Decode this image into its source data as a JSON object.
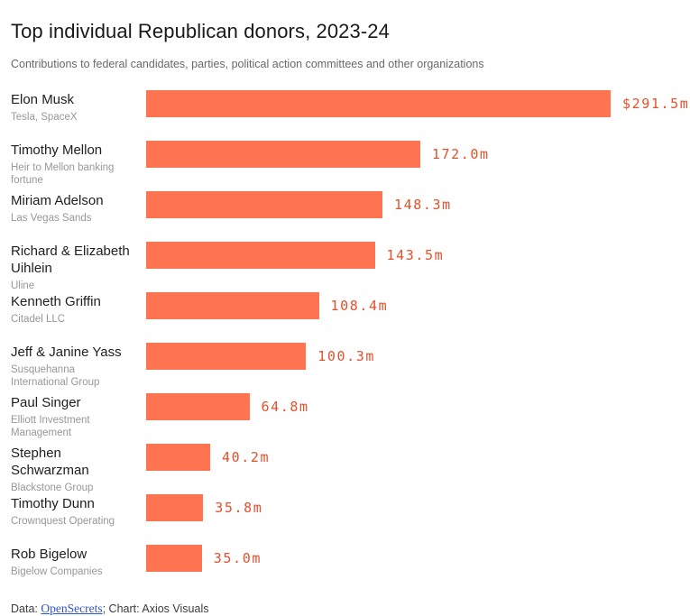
{
  "title": "Top individual Republican donors, 2023-24",
  "subtitle": "Contributions to federal candidates, parties, political action committees and other organizations",
  "footer": {
    "prefix": "Data: ",
    "link_text": "OpenSecrets",
    "suffix": "; Chart: Axios Visuals"
  },
  "colors": {
    "bar": "#ff7450",
    "value_label": "#e5502b",
    "link": "#2f54cf"
  },
  "chart_data": {
    "type": "bar",
    "orientation": "horizontal",
    "title": "Top individual Republican donors, 2023-24",
    "subtitle": "Contributions to federal candidates, parties, political action committees and other organizations",
    "unit": "millions of US dollars",
    "xlim": [
      0,
      291.5
    ],
    "grid": false,
    "legend": false,
    "max_value": 291.5,
    "rows": [
      {
        "name": "Elon Musk",
        "org": "Tesla, SpaceX",
        "value": 291.5,
        "label": "$291.5m"
      },
      {
        "name": "Timothy Mellon",
        "org": "Heir to Mellon banking fortune",
        "value": 172.0,
        "label": "172.0m"
      },
      {
        "name": "Miriam Adelson",
        "org": "Las Vegas Sands",
        "value": 148.3,
        "label": "148.3m"
      },
      {
        "name": "Richard & Elizabeth Uihlein",
        "org": "Uline",
        "value": 143.5,
        "label": "143.5m"
      },
      {
        "name": "Kenneth Griffin",
        "org": "Citadel LLC",
        "value": 108.4,
        "label": "108.4m"
      },
      {
        "name": "Jeff & Janine Yass",
        "org": "Susquehanna International Group",
        "value": 100.3,
        "label": "100.3m"
      },
      {
        "name": "Paul Singer",
        "org": "Elliott Investment Management",
        "value": 64.8,
        "label": "64.8m"
      },
      {
        "name": "Stephen Schwarzman",
        "org": "Blackstone Group",
        "value": 40.2,
        "label": "40.2m"
      },
      {
        "name": "Timothy Dunn",
        "org": "Crownquest Operating",
        "value": 35.8,
        "label": "35.8m"
      },
      {
        "name": "Rob Bigelow",
        "org": "Bigelow Companies",
        "value": 35.0,
        "label": "35.0m"
      }
    ]
  }
}
